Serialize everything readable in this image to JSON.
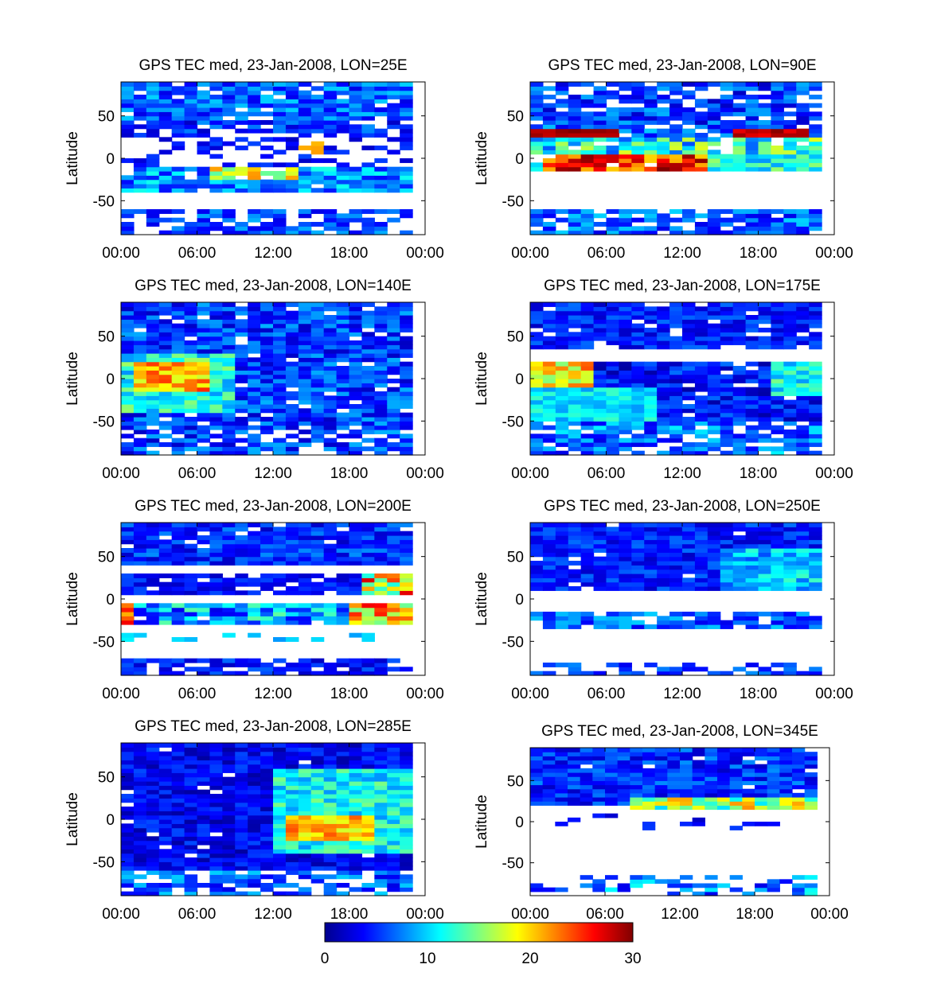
{
  "chart_data": {
    "type": "heatmap",
    "colorbar": {
      "min": 0,
      "max": 30,
      "ticks": [
        "0",
        "10",
        "20",
        "30"
      ],
      "colormap": "jet"
    },
    "panels": [
      {
        "title": "GPS TEC med, 23-Jan-2008, LON=25E",
        "ylabel": "Latitude",
        "xticks": [
          "00:00",
          "06:00",
          "12:00",
          "18:00",
          "00:00"
        ],
        "yticks": [
          "50",
          "0",
          "-50"
        ],
        "xlim": [
          0,
          24
        ],
        "ylim": [
          -90,
          90
        ],
        "regions": [
          {
            "lat": [
              45,
              90
            ],
            "hours": [
              0,
              23
            ],
            "tec": [
              3,
              10
            ],
            "coverage": 0.9
          },
          {
            "lat": [
              30,
              45
            ],
            "hours": [
              0,
              23
            ],
            "tec": [
              2,
              8
            ],
            "coverage": 0.7
          },
          {
            "lat": [
              5,
              30
            ],
            "hours": [
              0,
              23
            ],
            "tec": [
              2,
              6
            ],
            "coverage": 0.35
          },
          {
            "lat": [
              5,
              20
            ],
            "hours": [
              14,
              16
            ],
            "tec": [
              19,
              23
            ],
            "coverage": 0.6
          },
          {
            "lat": [
              -10,
              5
            ],
            "hours": [
              0,
              23
            ],
            "tec": [
              2,
              6
            ],
            "coverage": 0.25
          },
          {
            "lat": [
              -40,
              -10
            ],
            "hours": [
              0,
              23
            ],
            "tec": [
              4,
              12
            ],
            "coverage": 0.95
          },
          {
            "lat": [
              -25,
              -10
            ],
            "hours": [
              7,
              14
            ],
            "tec": [
              14,
              22
            ],
            "coverage": 0.9
          },
          {
            "lat": [
              -90,
              -60
            ],
            "hours": [
              0,
              23
            ],
            "tec": [
              3,
              9
            ],
            "coverage": 0.75
          }
        ]
      },
      {
        "title": "GPS TEC med, 23-Jan-2008, LON=90E",
        "ylabel": "Latitude",
        "xticks": [
          "00:00",
          "06:00",
          "12:00",
          "18:00",
          "00:00"
        ],
        "yticks": [
          "50",
          "0",
          "-50"
        ],
        "xlim": [
          0,
          24
        ],
        "ylim": [
          -90,
          90
        ],
        "regions": [
          {
            "lat": [
              40,
              90
            ],
            "hours": [
              0,
              23
            ],
            "tec": [
              2,
              9
            ],
            "coverage": 0.75
          },
          {
            "lat": [
              25,
              40
            ],
            "hours": [
              0,
              23
            ],
            "tec": [
              3,
              10
            ],
            "coverage": 0.85
          },
          {
            "lat": [
              25,
              35
            ],
            "hours": [
              0,
              7
            ],
            "tec": [
              28,
              30
            ],
            "coverage": 1.0
          },
          {
            "lat": [
              25,
              35
            ],
            "hours": [
              16,
              22
            ],
            "tec": [
              26,
              30
            ],
            "coverage": 1.0
          },
          {
            "lat": [
              5,
              25
            ],
            "hours": [
              0,
              23
            ],
            "tec": [
              6,
              18
            ],
            "coverage": 0.9
          },
          {
            "lat": [
              -15,
              5
            ],
            "hours": [
              0,
              23
            ],
            "tec": [
              8,
              16
            ],
            "coverage": 0.95
          },
          {
            "lat": [
              -15,
              5
            ],
            "hours": [
              1,
              14
            ],
            "tec": [
              20,
              30
            ],
            "coverage": 0.95
          },
          {
            "lat": [
              -90,
              -60
            ],
            "hours": [
              0,
              23
            ],
            "tec": [
              3,
              10
            ],
            "coverage": 0.8
          }
        ]
      },
      {
        "title": "GPS TEC med, 23-Jan-2008, LON=140E",
        "ylabel": "Latitude",
        "xticks": [
          "00:00",
          "06:00",
          "12:00",
          "18:00",
          "00:00"
        ],
        "yticks": [
          "50",
          "0",
          "-50"
        ],
        "xlim": [
          0,
          24
        ],
        "ylim": [
          -90,
          90
        ],
        "regions": [
          {
            "lat": [
              -60,
              90
            ],
            "hours": [
              0,
              23
            ],
            "tec": [
              2,
              9
            ],
            "coverage": 0.93
          },
          {
            "lat": [
              -40,
              30
            ],
            "hours": [
              0,
              9
            ],
            "tec": [
              8,
              16
            ],
            "coverage": 1.0
          },
          {
            "lat": [
              -15,
              20
            ],
            "hours": [
              1,
              7
            ],
            "tec": [
              17,
              25
            ],
            "coverage": 1.0
          },
          {
            "lat": [
              -90,
              -60
            ],
            "hours": [
              0,
              23
            ],
            "tec": [
              2,
              9
            ],
            "coverage": 0.7
          }
        ]
      },
      {
        "title": "GPS TEC med, 23-Jan-2008, LON=175E",
        "ylabel": "Latitude",
        "xticks": [
          "00:00",
          "06:00",
          "12:00",
          "18:00",
          "00:00"
        ],
        "yticks": [
          "50",
          "0",
          "-50"
        ],
        "xlim": [
          0,
          24
        ],
        "ylim": [
          -90,
          90
        ],
        "regions": [
          {
            "lat": [
              35,
              90
            ],
            "hours": [
              0,
              23
            ],
            "tec": [
              2,
              7
            ],
            "coverage": 0.9
          },
          {
            "lat": [
              -50,
              20
            ],
            "hours": [
              0,
              23
            ],
            "tec": [
              1,
              7
            ],
            "coverage": 0.95
          },
          {
            "lat": [
              -20,
              20
            ],
            "hours": [
              0,
              5
            ],
            "tec": [
              15,
              24
            ],
            "coverage": 1.0
          },
          {
            "lat": [
              -50,
              -10
            ],
            "hours": [
              0,
              10
            ],
            "tec": [
              8,
              13
            ],
            "coverage": 1.0
          },
          {
            "lat": [
              -20,
              20
            ],
            "hours": [
              19,
              23
            ],
            "tec": [
              8,
              15
            ],
            "coverage": 1.0
          },
          {
            "lat": [
              -90,
              -50
            ],
            "hours": [
              0,
              23
            ],
            "tec": [
              3,
              11
            ],
            "coverage": 0.75
          }
        ]
      },
      {
        "title": "GPS TEC med, 23-Jan-2008, LON=200E",
        "ylabel": "Latitude",
        "xticks": [
          "00:00",
          "06:00",
          "12:00",
          "18:00",
          "00:00"
        ],
        "yticks": [
          "50",
          "0",
          "-50"
        ],
        "xlim": [
          0,
          24
        ],
        "ylim": [
          -90,
          90
        ],
        "regions": [
          {
            "lat": [
              40,
              90
            ],
            "hours": [
              0,
              23
            ],
            "tec": [
              2,
              8
            ],
            "coverage": 0.95
          },
          {
            "lat": [
              5,
              30
            ],
            "hours": [
              0,
              23
            ],
            "tec": [
              2,
              6
            ],
            "coverage": 0.9
          },
          {
            "lat": [
              5,
              30
            ],
            "hours": [
              19,
              23
            ],
            "tec": [
              12,
              28
            ],
            "coverage": 1.0
          },
          {
            "lat": [
              -30,
              -5
            ],
            "hours": [
              0,
              23
            ],
            "tec": [
              3,
              14
            ],
            "coverage": 0.9
          },
          {
            "lat": [
              -30,
              -5
            ],
            "hours": [
              0,
              1
            ],
            "tec": [
              20,
              28
            ],
            "coverage": 1.0
          },
          {
            "lat": [
              -30,
              -5
            ],
            "hours": [
              18,
              23
            ],
            "tec": [
              14,
              27
            ],
            "coverage": 1.0
          },
          {
            "lat": [
              -50,
              -40
            ],
            "hours": [
              0,
              20
            ],
            "tec": [
              8,
              11
            ],
            "coverage": 0.3
          },
          {
            "lat": [
              -90,
              -70
            ],
            "hours": [
              0,
              23
            ],
            "tec": [
              2,
              7
            ],
            "coverage": 0.7
          }
        ]
      },
      {
        "title": "GPS TEC med, 23-Jan-2008, LON=250E",
        "ylabel": "Latitude",
        "xticks": [
          "00:00",
          "06:00",
          "12:00",
          "18:00",
          "00:00"
        ],
        "yticks": [
          "50",
          "0",
          "-50"
        ],
        "xlim": [
          0,
          24
        ],
        "ylim": [
          -90,
          90
        ],
        "regions": [
          {
            "lat": [
              10,
              90
            ],
            "hours": [
              0,
              23
            ],
            "tec": [
              2,
              7
            ],
            "coverage": 0.97
          },
          {
            "lat": [
              10,
              60
            ],
            "hours": [
              15,
              23
            ],
            "tec": [
              6,
              13
            ],
            "coverage": 1.0
          },
          {
            "lat": [
              -35,
              -15
            ],
            "hours": [
              0,
              23
            ],
            "tec": [
              3,
              10
            ],
            "coverage": 0.85
          },
          {
            "lat": [
              -90,
              -75
            ],
            "hours": [
              0,
              23
            ],
            "tec": [
              3,
              8
            ],
            "coverage": 0.6
          }
        ]
      },
      {
        "title": "GPS TEC med, 23-Jan-2008, LON=285E",
        "ylabel": "Latitude",
        "xticks": [
          "00:00",
          "06:00",
          "12:00",
          "18:00",
          "00:00"
        ],
        "yticks": [
          "50",
          "0",
          "-50"
        ],
        "xlim": [
          0,
          24
        ],
        "ylim": [
          -90,
          90
        ],
        "regions": [
          {
            "lat": [
              -60,
              90
            ],
            "hours": [
              0,
              23
            ],
            "tec": [
              1,
              6
            ],
            "coverage": 0.97
          },
          {
            "lat": [
              -40,
              60
            ],
            "hours": [
              12,
              23
            ],
            "tec": [
              8,
              15
            ],
            "coverage": 1.0
          },
          {
            "lat": [
              -25,
              5
            ],
            "hours": [
              13,
              20
            ],
            "tec": [
              17,
              24
            ],
            "coverage": 1.0
          },
          {
            "lat": [
              -90,
              -60
            ],
            "hours": [
              0,
              23
            ],
            "tec": [
              3,
              10
            ],
            "coverage": 0.7
          }
        ]
      },
      {
        "title": "GPS TEC med, 23-Jan-2008, LON=345E",
        "ylabel": "Latitude",
        "xticks": [
          "00:00",
          "06:00",
          "12:00",
          "18:00",
          "00:00"
        ],
        "yticks": [
          "50",
          "0",
          "-50"
        ],
        "xlim": [
          0,
          24
        ],
        "ylim": [
          -90,
          90
        ],
        "regions": [
          {
            "lat": [
              20,
              90
            ],
            "hours": [
              0,
              23
            ],
            "tec": [
              2,
              8
            ],
            "coverage": 0.95
          },
          {
            "lat": [
              15,
              30
            ],
            "hours": [
              8,
              23
            ],
            "tec": [
              10,
              22
            ],
            "coverage": 1.0
          },
          {
            "lat": [
              -10,
              10
            ],
            "hours": [
              0,
              21
            ],
            "tec": [
              2,
              6
            ],
            "coverage": 0.12
          },
          {
            "lat": [
              -90,
              -65
            ],
            "hours": [
              0,
              23
            ],
            "tec": [
              3,
              12
            ],
            "coverage": 0.35
          }
        ]
      }
    ]
  }
}
